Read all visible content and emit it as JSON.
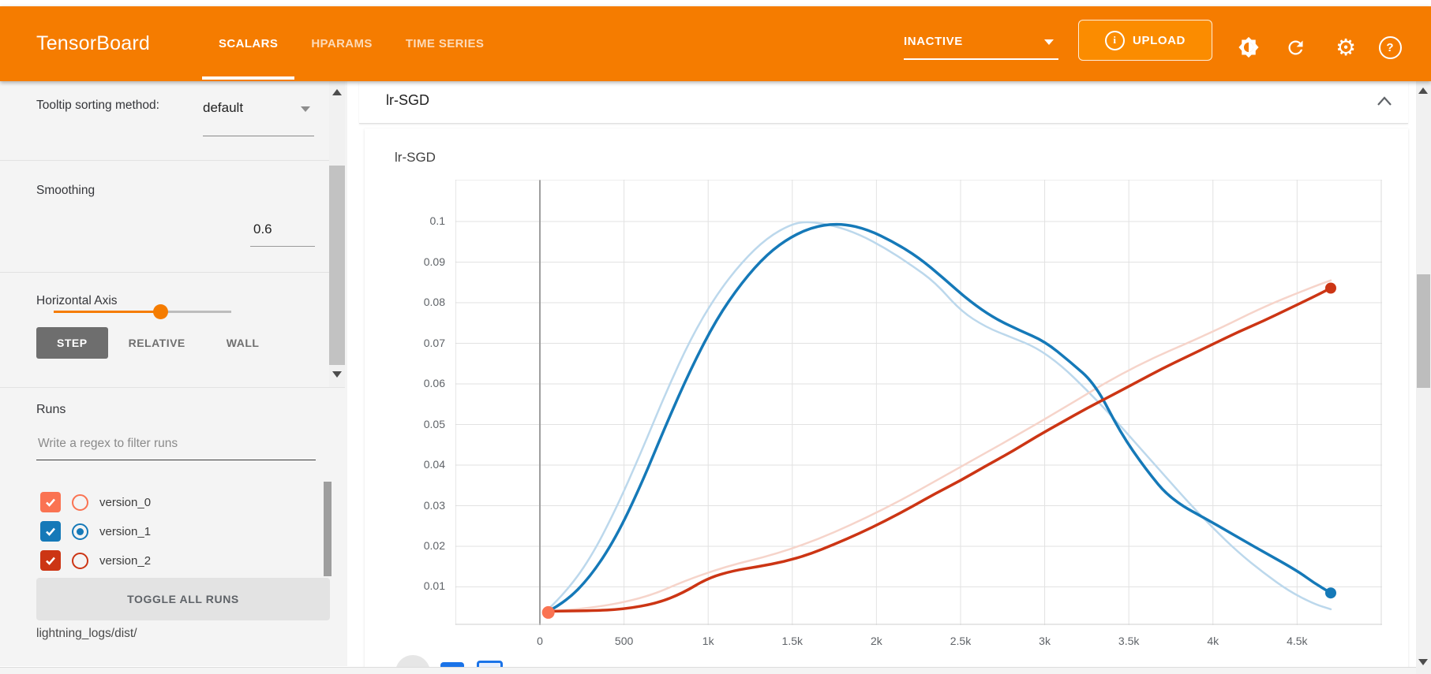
{
  "header": {
    "title": "TensorBoard",
    "tabs": [
      {
        "label": "SCALARS",
        "active": true
      },
      {
        "label": "HPARAMS",
        "active": false
      },
      {
        "label": "TIME SERIES",
        "active": false
      }
    ],
    "status_dropdown": {
      "value": "INACTIVE"
    },
    "upload_label": "UPLOAD",
    "accent_color": "#f57c00",
    "icons": [
      "info-icon",
      "brightness-icon",
      "refresh-icon",
      "settings-gear-icon",
      "help-icon"
    ]
  },
  "sidebar": {
    "tooltip_sorting": {
      "label": "Tooltip sorting method:",
      "value": "default"
    },
    "smoothing": {
      "label": "Smoothing",
      "value": "0.6",
      "fraction": 0.6
    },
    "horizontal_axis": {
      "label": "Horizontal Axis",
      "options": [
        "STEP",
        "RELATIVE",
        "WALL"
      ],
      "selected": "STEP"
    },
    "runs": {
      "label": "Runs",
      "filter_placeholder": "Write a regex to filter runs",
      "items": [
        {
          "name": "version_0",
          "checked": true,
          "radio_selected": false,
          "color": "#fa7352"
        },
        {
          "name": "version_1",
          "checked": true,
          "radio_selected": true,
          "color": "#1579b8"
        },
        {
          "name": "version_2",
          "checked": true,
          "radio_selected": false,
          "color": "#cc3514"
        }
      ],
      "toggle_all_label": "TOGGLE ALL RUNS",
      "log_dir": "lightning_logs/dist/"
    }
  },
  "main": {
    "group_title": "lr-SGD"
  },
  "chart_data": {
    "type": "line",
    "title": "lr-SGD",
    "x_range": [
      -502,
      5005
    ],
    "y_range": [
      0.00058,
      0.1103
    ],
    "x_ticks": [
      {
        "value": 0,
        "label": "0",
        "major": true
      },
      {
        "value": 500,
        "label": "500"
      },
      {
        "value": 1000,
        "label": "1k"
      },
      {
        "value": 1500,
        "label": "1.5k"
      },
      {
        "value": 2000,
        "label": "2k"
      },
      {
        "value": 2500,
        "label": "2.5k"
      },
      {
        "value": 3000,
        "label": "3k"
      },
      {
        "value": 3500,
        "label": "3.5k"
      },
      {
        "value": 4000,
        "label": "4k"
      },
      {
        "value": 4500,
        "label": "4.5k"
      },
      {
        "value": 5000,
        "label": ""
      }
    ],
    "y_ticks": [
      {
        "value": 0.1,
        "label": "0.1"
      },
      {
        "value": 0.09,
        "label": "0.09"
      },
      {
        "value": 0.08,
        "label": "0.08"
      },
      {
        "value": 0.07,
        "label": "0.07"
      },
      {
        "value": 0.06,
        "label": "0.06"
      },
      {
        "value": 0.05,
        "label": "0.05"
      },
      {
        "value": 0.04,
        "label": "0.04"
      },
      {
        "value": 0.03,
        "label": "0.03"
      },
      {
        "value": 0.02,
        "label": "0.02"
      },
      {
        "value": 0.01,
        "label": "0.01"
      }
    ],
    "grid": true,
    "legend_position": "none",
    "series": [
      {
        "name": "version_1",
        "kind": "raw",
        "color": "#bcd8ec",
        "width": 2.5,
        "end_dot": false,
        "points": [
          [
            50,
            0.0045
          ],
          [
            150,
            0.0085
          ],
          [
            300,
            0.017
          ],
          [
            450,
            0.029
          ],
          [
            600,
            0.043
          ],
          [
            750,
            0.058
          ],
          [
            900,
            0.0715
          ],
          [
            1050,
            0.082
          ],
          [
            1200,
            0.09
          ],
          [
            1350,
            0.096
          ],
          [
            1500,
            0.0995
          ],
          [
            1600,
            0.1
          ],
          [
            1750,
            0.099
          ],
          [
            1900,
            0.0968
          ],
          [
            2050,
            0.0935
          ],
          [
            2200,
            0.0895
          ],
          [
            2350,
            0.085
          ],
          [
            2500,
            0.078
          ],
          [
            2650,
            0.074
          ],
          [
            2800,
            0.0715
          ],
          [
            2950,
            0.069
          ],
          [
            3100,
            0.0645
          ],
          [
            3250,
            0.0585
          ],
          [
            3400,
            0.052
          ],
          [
            3550,
            0.045
          ],
          [
            3700,
            0.038
          ],
          [
            3850,
            0.031
          ],
          [
            4000,
            0.0245
          ],
          [
            4150,
            0.0185
          ],
          [
            4300,
            0.0135
          ],
          [
            4450,
            0.009
          ],
          [
            4600,
            0.0058
          ],
          [
            4700,
            0.0045
          ]
        ]
      },
      {
        "name": "version_2",
        "kind": "raw",
        "color": "#f6d4ca",
        "width": 2.5,
        "end_dot": false,
        "points": [
          [
            50,
            0.004
          ],
          [
            500,
            0.005
          ],
          [
            1000,
            0.014
          ],
          [
            1500,
            0.019
          ],
          [
            2000,
            0.028
          ],
          [
            2500,
            0.0395
          ],
          [
            3000,
            0.0512
          ],
          [
            3500,
            0.0638
          ],
          [
            4000,
            0.0728
          ],
          [
            4300,
            0.079
          ],
          [
            4600,
            0.084
          ],
          [
            4700,
            0.0855
          ]
        ]
      },
      {
        "name": "version_1 (smoothed 0.6)",
        "kind": "smoothed",
        "color": "#1579b8",
        "width": 3.5,
        "end_dot": true,
        "dot_r": 7,
        "points": [
          [
            50,
            0.004
          ],
          [
            150,
            0.0062
          ],
          [
            300,
            0.0125
          ],
          [
            450,
            0.022
          ],
          [
            600,
            0.035
          ],
          [
            750,
            0.05
          ],
          [
            900,
            0.064
          ],
          [
            1050,
            0.076
          ],
          [
            1200,
            0.085
          ],
          [
            1350,
            0.092
          ],
          [
            1500,
            0.0965
          ],
          [
            1650,
            0.099
          ],
          [
            1800,
            0.0995
          ],
          [
            1950,
            0.098
          ],
          [
            2100,
            0.095
          ],
          [
            2250,
            0.0912
          ],
          [
            2400,
            0.086
          ],
          [
            2550,
            0.0805
          ],
          [
            2700,
            0.0762
          ],
          [
            2850,
            0.0732
          ],
          [
            3000,
            0.0705
          ],
          [
            3150,
            0.0655
          ],
          [
            3300,
            0.06
          ],
          [
            3450,
            0.048
          ],
          [
            3600,
            0.039
          ],
          [
            3750,
            0.0315
          ],
          [
            4000,
            0.0258
          ],
          [
            4250,
            0.0198
          ],
          [
            4500,
            0.014
          ],
          [
            4600,
            0.011
          ],
          [
            4700,
            0.0085
          ]
        ]
      },
      {
        "name": "version_2 (smoothed 0.6)",
        "kind": "smoothed",
        "color": "#cc3514",
        "width": 3.5,
        "end_dot": true,
        "dot_r": 7,
        "points": [
          [
            50,
            0.004
          ],
          [
            300,
            0.0041
          ],
          [
            500,
            0.0045
          ],
          [
            700,
            0.006
          ],
          [
            850,
            0.0085
          ],
          [
            1000,
            0.0122
          ],
          [
            1150,
            0.014
          ],
          [
            1300,
            0.015
          ],
          [
            1450,
            0.0162
          ],
          [
            1600,
            0.018
          ],
          [
            1750,
            0.0205
          ],
          [
            1900,
            0.0232
          ],
          [
            2050,
            0.0262
          ],
          [
            2200,
            0.0295
          ],
          [
            2350,
            0.033
          ],
          [
            2500,
            0.0362
          ],
          [
            2650,
            0.0398
          ],
          [
            2800,
            0.0432
          ],
          [
            2950,
            0.047
          ],
          [
            3100,
            0.0505
          ],
          [
            3250,
            0.054
          ],
          [
            3400,
            0.0572
          ],
          [
            3550,
            0.0605
          ],
          [
            3700,
            0.0638
          ],
          [
            3850,
            0.0668
          ],
          [
            4000,
            0.0698
          ],
          [
            4150,
            0.0728
          ],
          [
            4300,
            0.0755
          ],
          [
            4450,
            0.0785
          ],
          [
            4600,
            0.0815
          ],
          [
            4700,
            0.0836
          ]
        ]
      },
      {
        "name": "version_0",
        "kind": "smoothed",
        "color": "#fa7352",
        "width": 3.5,
        "end_dot": true,
        "dot_r": 8,
        "points": [
          [
            50,
            0.0037
          ]
        ]
      }
    ]
  }
}
